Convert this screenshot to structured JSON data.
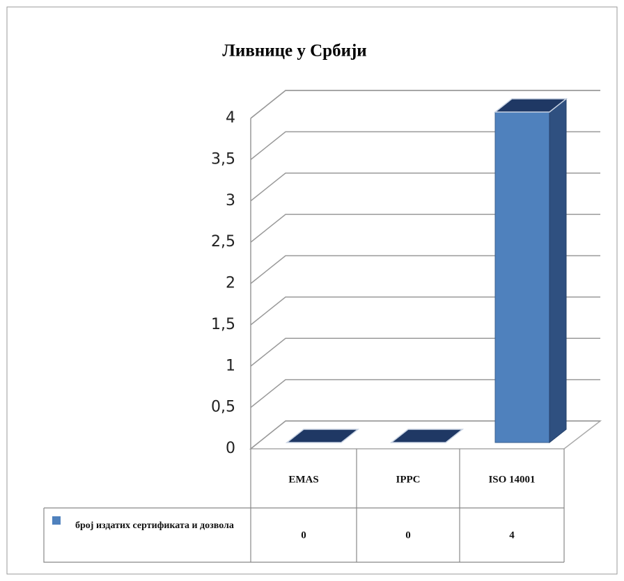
{
  "chart_data": {
    "type": "bar3d",
    "title": "Ливнице у Србији",
    "categories": [
      "EMAS",
      "IPPC",
      "ISO 14001"
    ],
    "series": [
      {
        "name": "број издатих сертификата и дозвола",
        "color": "#4f81bd",
        "values": [
          0,
          0,
          4
        ]
      }
    ],
    "ylim": [
      0,
      4
    ],
    "yticks": [
      0,
      {
        "value": 0.5,
        "label": "0,5"
      },
      1,
      {
        "value": 1.5,
        "label": "1,5"
      },
      2,
      {
        "value": 2.5,
        "label": "2,5"
      },
      3,
      {
        "value": 3.5,
        "label": "3,5"
      },
      4
    ],
    "grid": true
  }
}
